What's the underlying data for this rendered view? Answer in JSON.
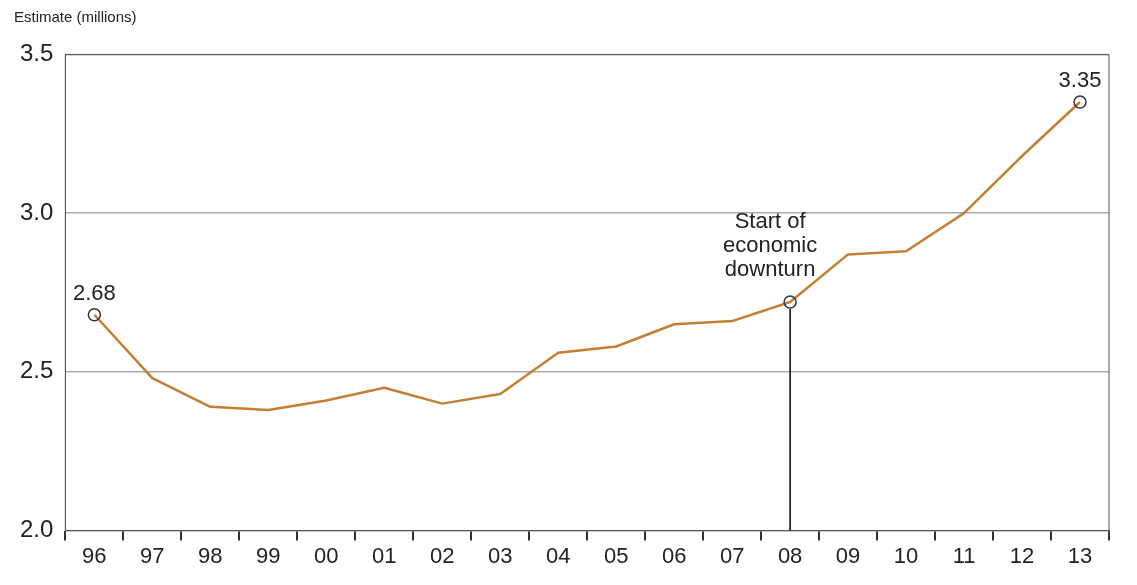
{
  "chart_data": {
    "type": "line",
    "ylabel": "Estimate (millions)",
    "categories": [
      "96",
      "97",
      "98",
      "99",
      "00",
      "01",
      "02",
      "03",
      "04",
      "05",
      "06",
      "07",
      "08",
      "09",
      "10",
      "11",
      "12",
      "13"
    ],
    "values": [
      2.68,
      2.48,
      2.39,
      2.38,
      2.41,
      2.45,
      2.4,
      2.43,
      2.56,
      2.58,
      2.65,
      2.66,
      2.72,
      2.87,
      2.88,
      3.0,
      3.18,
      3.35
    ],
    "value_labels": [
      "2.68",
      null,
      null,
      null,
      null,
      null,
      null,
      null,
      null,
      null,
      null,
      null,
      null,
      null,
      null,
      null,
      null,
      "3.35"
    ],
    "color": "#c47f32",
    "ylim": [
      2.0,
      3.5
    ],
    "yticks": [
      {
        "value": 2,
        "label": "2.0"
      },
      {
        "value": 2.5,
        "label": "2.5"
      },
      {
        "value": 3,
        "label": "3.0"
      },
      {
        "value": 3.5,
        "label": "3.5"
      }
    ],
    "grid": "y",
    "line_style": "solid",
    "ref_lines": [
      {
        "axis": "x",
        "value": "08",
        "label": "Start of\neconomic\ndownturn",
        "color": "#000000"
      }
    ]
  }
}
